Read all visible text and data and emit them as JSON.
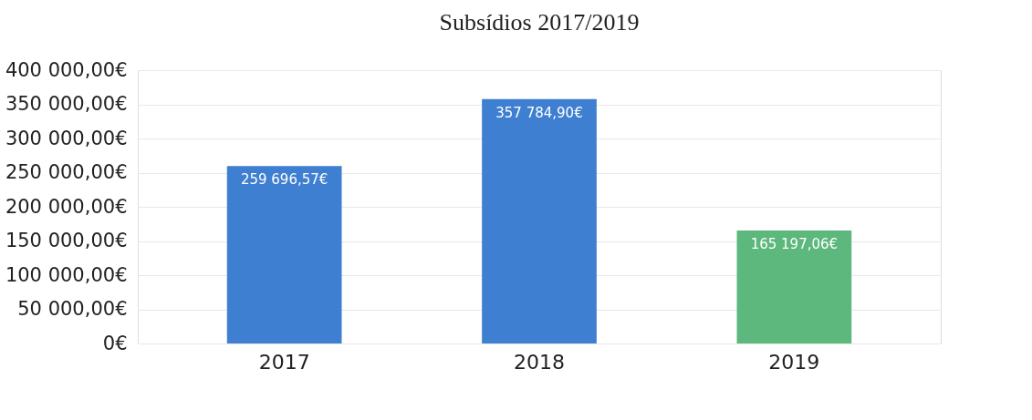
{
  "chart_data": {
    "type": "bar",
    "title": "Subsídios  2017/2019",
    "categories": [
      "2017",
      "2018",
      "2019"
    ],
    "values": [
      259696.57,
      357784.9,
      165197.06
    ],
    "colors": [
      "#3f7fd1",
      "#3f7fd1",
      "#5cb87c"
    ],
    "value_labels": [
      "259 696,57€",
      "357 784,90€",
      "165 197,06€"
    ],
    "ylim": [
      0,
      400000
    ],
    "yticks": [
      {
        "value": 0,
        "label": "0€"
      },
      {
        "value": 50000,
        "label": "50 000,00€"
      },
      {
        "value": 100000,
        "label": "100 000,00€"
      },
      {
        "value": 150000,
        "label": "150 000,00€"
      },
      {
        "value": 200000,
        "label": "200 000,00€"
      },
      {
        "value": 250000,
        "label": "250 000,00€"
      },
      {
        "value": 300000,
        "label": "300 000,00€"
      },
      {
        "value": 350000,
        "label": "350 000,00€"
      },
      {
        "value": 400000,
        "label": "400 000,00€"
      }
    ],
    "grid": "y"
  }
}
